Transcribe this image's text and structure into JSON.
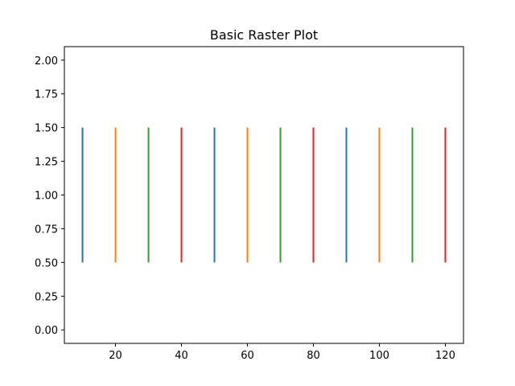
{
  "chart_data": {
    "type": "raster",
    "title": "Basic Raster Plot",
    "xlabel": "",
    "ylabel": "",
    "xlim": [
      4.5,
      125.5
    ],
    "ylim": [
      -0.1,
      2.1
    ],
    "xticks": [
      20,
      40,
      60,
      80,
      100,
      120
    ],
    "xtick_labels": [
      "20",
      "40",
      "60",
      "80",
      "100",
      "120"
    ],
    "yticks": [
      0.0,
      0.25,
      0.5,
      0.75,
      1.0,
      1.25,
      1.5,
      1.75,
      2.0
    ],
    "ytick_labels": [
      "0.00",
      "0.25",
      "0.50",
      "0.75",
      "1.00",
      "1.25",
      "1.50",
      "1.75",
      "2.00"
    ],
    "grid": false,
    "events": [
      {
        "x": 10,
        "y0": 0.5,
        "y1": 1.5,
        "color": "#1f77b4"
      },
      {
        "x": 20,
        "y0": 0.5,
        "y1": 1.5,
        "color": "#ff7f0e"
      },
      {
        "x": 30,
        "y0": 0.5,
        "y1": 1.5,
        "color": "#2ca02c"
      },
      {
        "x": 40,
        "y0": 0.5,
        "y1": 1.5,
        "color": "#d62728"
      },
      {
        "x": 50,
        "y0": 0.5,
        "y1": 1.5,
        "color": "#1f77b4"
      },
      {
        "x": 60,
        "y0": 0.5,
        "y1": 1.5,
        "color": "#ff7f0e"
      },
      {
        "x": 70,
        "y0": 0.5,
        "y1": 1.5,
        "color": "#2ca02c"
      },
      {
        "x": 80,
        "y0": 0.5,
        "y1": 1.5,
        "color": "#d62728"
      },
      {
        "x": 90,
        "y0": 0.5,
        "y1": 1.5,
        "color": "#1f77b4"
      },
      {
        "x": 100,
        "y0": 0.5,
        "y1": 1.5,
        "color": "#ff7f0e"
      },
      {
        "x": 110,
        "y0": 0.5,
        "y1": 1.5,
        "color": "#2ca02c"
      },
      {
        "x": 120,
        "y0": 0.5,
        "y1": 1.5,
        "color": "#d62728"
      }
    ]
  }
}
